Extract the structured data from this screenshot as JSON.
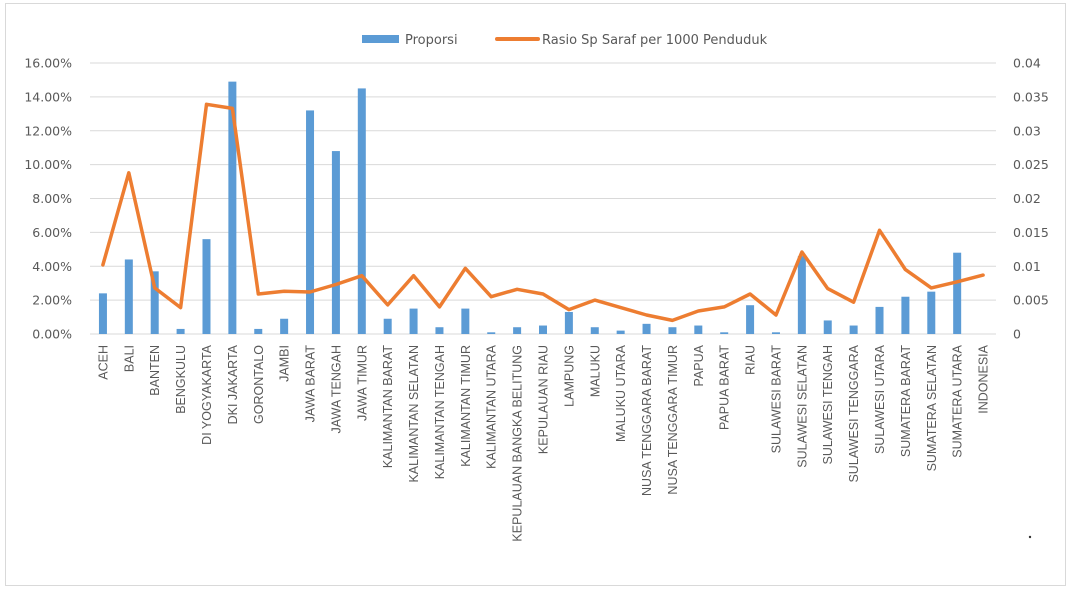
{
  "chart_data": {
    "type": "bar+line",
    "title": "",
    "categories": [
      "ACEH",
      "BALI",
      "BANTEN",
      "BENGKULU",
      "DI YOGYAKARTA",
      "DKI JAKARTA",
      "GORONTALO",
      "JAMBI",
      "JAWA BARAT",
      "JAWA TENGAH",
      "JAWA TIMUR",
      "KALIMANTAN BARAT",
      "KALIMANTAN SELATAN",
      "KALIMANTAN TENGAH",
      "KALIMANTAN TIMUR",
      "KALIMANTAN UTARA",
      "KEPULAUAN BANGKA BELITUNG",
      "KEPULAUAN RIAU",
      "LAMPUNG",
      "MALUKU",
      "MALUKU UTARA",
      "NUSA TENGGARA BARAT",
      "NUSA TENGGARA TIMUR",
      "PAPUA",
      "PAPUA BARAT",
      "RIAU",
      "SULAWESI BARAT",
      "SULAWESI SELATAN",
      "SULAWESI TENGAH",
      "SULAWESI TENGGARA",
      "SULAWESI UTARA",
      "SUMATERA BARAT",
      "SUMATERA SELATAN",
      "SUMATERA UTARA",
      "INDONESIA"
    ],
    "series": [
      {
        "name": "Proporsi",
        "type": "bar",
        "axis": "left",
        "color": "#5b9bd5",
        "values": [
          2.4,
          4.4,
          3.7,
          0.3,
          5.6,
          14.9,
          0.3,
          0.9,
          13.2,
          10.8,
          14.5,
          0.9,
          1.5,
          0.4,
          1.5,
          0.1,
          0.4,
          0.5,
          1.3,
          0.4,
          0.2,
          0.6,
          0.4,
          0.5,
          0.1,
          1.7,
          0.1,
          4.6,
          0.8,
          0.5,
          1.6,
          2.2,
          2.5,
          4.8,
          null
        ]
      },
      {
        "name": "Rasio Sp Saraf per 1000 Penduduk",
        "type": "line",
        "axis": "right",
        "color": "#ed7d31",
        "values": [
          0.0102,
          0.0238,
          0.0068,
          0.0039,
          0.0339,
          0.0333,
          0.0059,
          0.0063,
          0.0062,
          0.0073,
          0.0086,
          0.0043,
          0.0086,
          0.004,
          0.0097,
          0.0055,
          0.0066,
          0.0059,
          0.0036,
          0.005,
          0.0039,
          0.0028,
          0.002,
          0.0034,
          0.004,
          0.0059,
          0.0028,
          0.0121,
          0.0067,
          0.0047,
          0.0153,
          0.0095,
          0.0068,
          0.0077,
          0.0087
        ]
      }
    ],
    "left_axis": {
      "label": "",
      "ylim": [
        0,
        16
      ],
      "ticks": [
        "0.00%",
        "2.00%",
        "4.00%",
        "6.00%",
        "8.00%",
        "10.00%",
        "12.00%",
        "14.00%",
        "16.00%"
      ]
    },
    "right_axis": {
      "label": "",
      "ylim": [
        0,
        0.04
      ],
      "ticks": [
        "0",
        "0.005",
        "0.01",
        "0.015",
        "0.02",
        "0.025",
        "0.03",
        "0.035",
        "0.04"
      ]
    },
    "xlabel": "",
    "grid": true,
    "legend_position": "top"
  },
  "legend": {
    "bar_label": "Proporsi",
    "line_label": "Rasio Sp Saraf per 1000 Penduduk"
  },
  "colors": {
    "bar": "#5b9bd5",
    "line": "#ed7d31",
    "grid": "#d9d9d9",
    "text": "#595959"
  }
}
